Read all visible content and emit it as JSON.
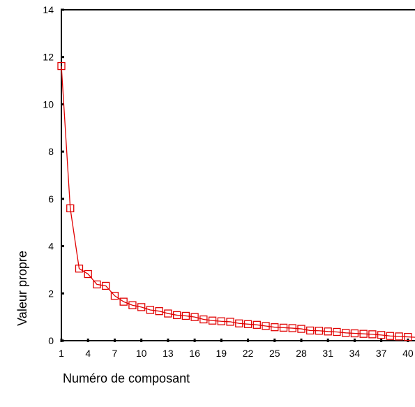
{
  "chart_data": {
    "type": "line",
    "title": "",
    "xlabel": "Numéro de composant",
    "ylabel": "Valeur propre",
    "xlim": [
      1,
      41
    ],
    "ylim": [
      0,
      14
    ],
    "x_ticks": [
      "1",
      "4",
      "7",
      "10",
      "13",
      "16",
      "19",
      "22",
      "25",
      "28",
      "31",
      "34",
      "37",
      "40"
    ],
    "y_ticks": [
      "0",
      "2",
      "4",
      "6",
      "8",
      "10",
      "12",
      "14"
    ],
    "grid": false,
    "legend": "none",
    "colors": {
      "series": "#e00000",
      "axis": "#000000"
    },
    "marker": "square",
    "series": [
      {
        "x": [
          1,
          2,
          3,
          4,
          5,
          6,
          7,
          8,
          9,
          10,
          11,
          12,
          13,
          14,
          15,
          16,
          17,
          18,
          19,
          20,
          21,
          22,
          23,
          24,
          25,
          26,
          27,
          28,
          29,
          30,
          31,
          32,
          33,
          34,
          35,
          36,
          37,
          38,
          39,
          40,
          41
        ],
        "values": [
          11.62,
          5.6,
          3.05,
          2.82,
          2.38,
          2.32,
          1.9,
          1.65,
          1.5,
          1.42,
          1.3,
          1.25,
          1.15,
          1.08,
          1.05,
          1.0,
          0.9,
          0.85,
          0.82,
          0.8,
          0.73,
          0.7,
          0.67,
          0.62,
          0.57,
          0.55,
          0.53,
          0.5,
          0.43,
          0.42,
          0.39,
          0.37,
          0.33,
          0.31,
          0.29,
          0.27,
          0.24,
          0.2,
          0.18,
          0.16,
          0.14
        ]
      }
    ]
  }
}
